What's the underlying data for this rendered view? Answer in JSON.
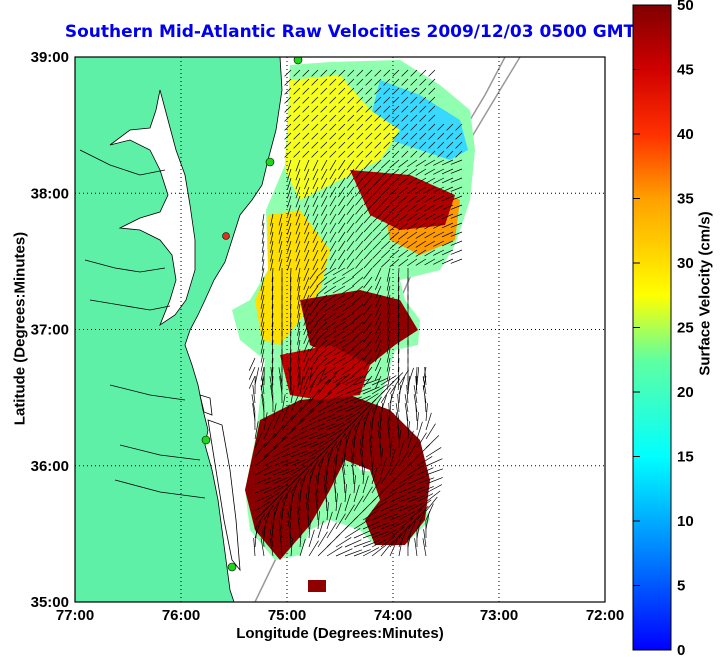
{
  "title": "Southern Mid-Atlantic Raw Velocities 2009/12/03 0500 GMT",
  "axes": {
    "xlabel": "Longitude (Degrees:Minutes)",
    "ylabel": "Latitude (Degrees:Minutes)",
    "xticks": [
      "77:00",
      "76:00",
      "75:00",
      "74:00",
      "73:00",
      "72:00"
    ],
    "yticks": [
      "39:00",
      "38:00",
      "37:00",
      "36:00",
      "35:00"
    ],
    "xlim": [
      -77,
      -72
    ],
    "ylim": [
      35,
      39
    ],
    "grid": "dotted"
  },
  "colorbar": {
    "label": "Surface Velocity (cm/s)",
    "ticks": [
      "50",
      "45",
      "40",
      "35",
      "30",
      "25",
      "20",
      "15",
      "10",
      "5",
      "0"
    ],
    "range": [
      0,
      50
    ],
    "colormap": "jet"
  },
  "colors": {
    "land": "#5ff0a8",
    "water": "#ffffff",
    "title": "#0000ee",
    "station": "#1ed61e",
    "station_alt": "#e03020"
  }
}
